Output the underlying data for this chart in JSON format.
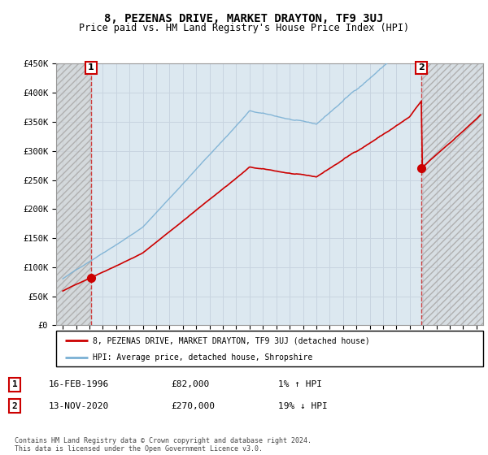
{
  "title": "8, PEZENAS DRIVE, MARKET DRAYTON, TF9 3UJ",
  "subtitle": "Price paid vs. HM Land Registry's House Price Index (HPI)",
  "ylabel_ticks": [
    "£0",
    "£50K",
    "£100K",
    "£150K",
    "£200K",
    "£250K",
    "£300K",
    "£350K",
    "£400K",
    "£450K"
  ],
  "ylim": [
    0,
    450000
  ],
  "xlim_start": 1993.5,
  "xlim_end": 2025.5,
  "sale1_year": 1996.12,
  "sale1_price": 82000,
  "sale2_year": 2020.87,
  "sale2_price": 270000,
  "line_color_property": "#cc0000",
  "line_color_hpi": "#7ab0d4",
  "legend_label1": "8, PEZENAS DRIVE, MARKET DRAYTON, TF9 3UJ (detached house)",
  "legend_label2": "HPI: Average price, detached house, Shropshire",
  "table_row1": [
    "1",
    "16-FEB-1996",
    "£82,000",
    "1% ↑ HPI"
  ],
  "table_row2": [
    "2",
    "13-NOV-2020",
    "£270,000",
    "19% ↓ HPI"
  ],
  "footer": "Contains HM Land Registry data © Crown copyright and database right 2024.\nThis data is licensed under the Open Government Licence v3.0.",
  "grid_color": "#c8d4e0",
  "plot_bg": "#dce8f0",
  "hatch_color": "#c8c8c8"
}
